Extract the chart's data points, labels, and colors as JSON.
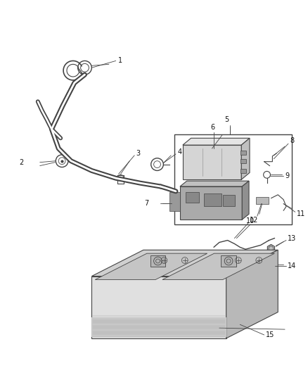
{
  "bg_color": "#ffffff",
  "fig_width": 4.38,
  "fig_height": 5.33,
  "dpi": 100,
  "lc": "#444444",
  "lc_thin": "#666666",
  "label_fontsize": 7.0,
  "label_color": "#111111"
}
